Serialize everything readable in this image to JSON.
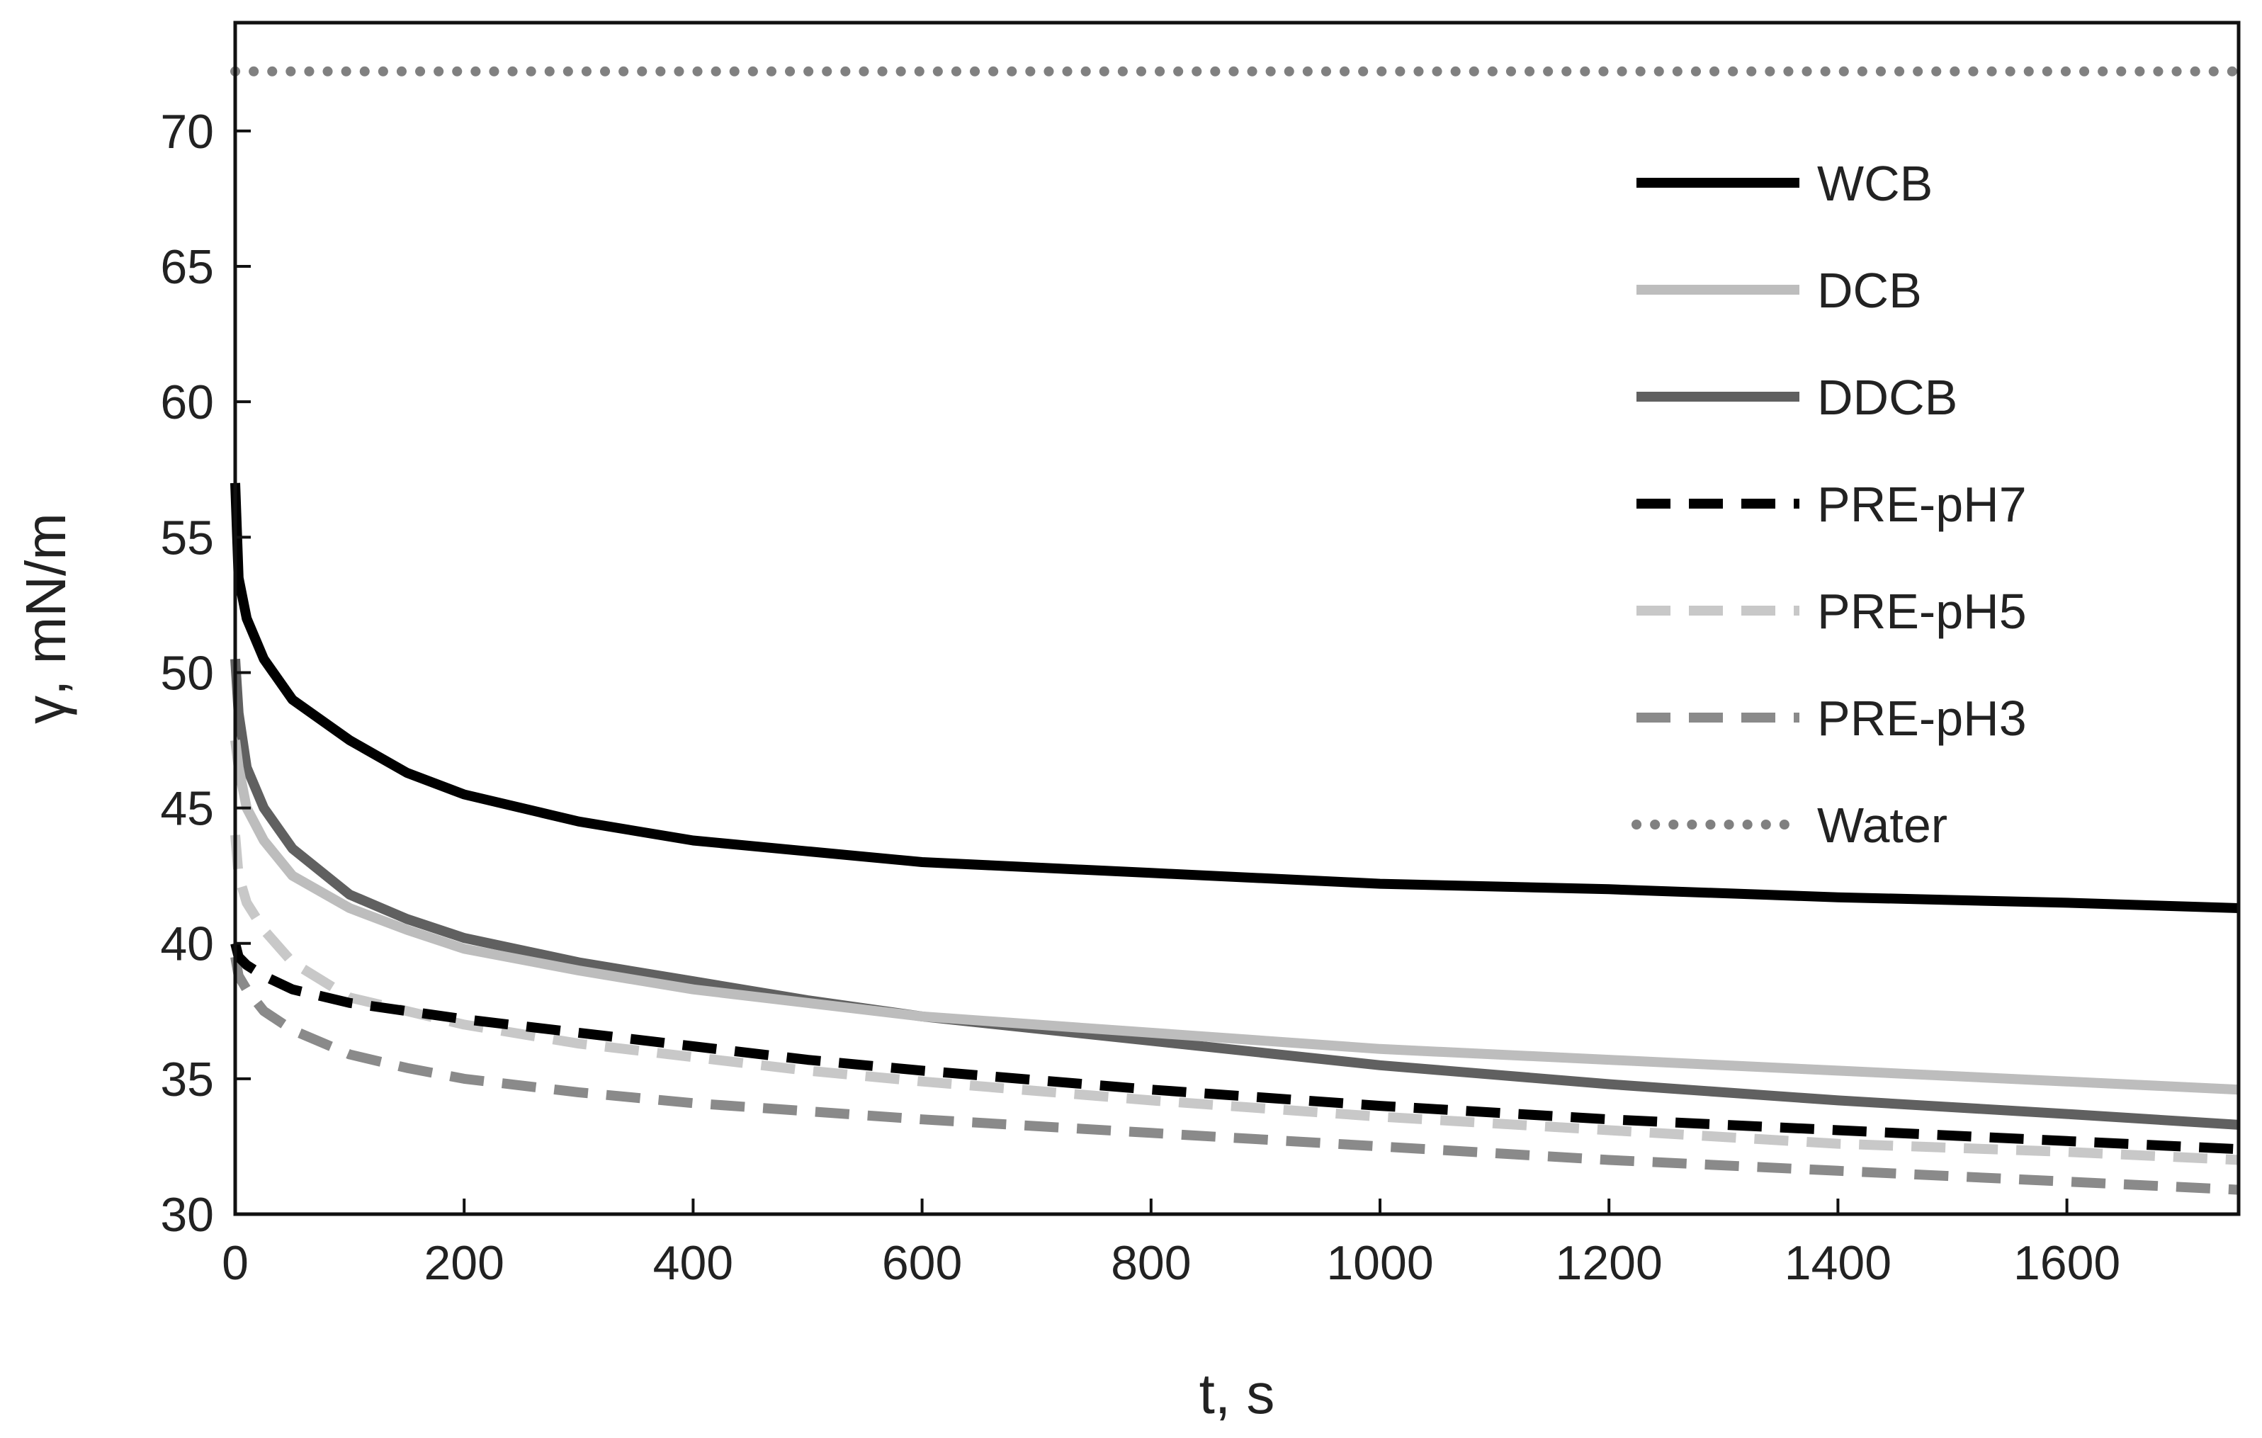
{
  "chart_data": {
    "type": "line",
    "title": "",
    "xlabel": "t, s",
    "ylabel": "γ, mN/m",
    "xlim": [
      0,
      1750
    ],
    "ylim": [
      30,
      74
    ],
    "x_ticks": [
      0,
      200,
      400,
      600,
      800,
      1000,
      1200,
      1400,
      1600
    ],
    "y_ticks": [
      30,
      35,
      40,
      45,
      50,
      55,
      60,
      65,
      70
    ],
    "grid": false,
    "legend_position": "top-right",
    "series": [
      {
        "name": "WCB",
        "color": "#000000",
        "style": "solid",
        "x": [
          0,
          3,
          10,
          25,
          50,
          100,
          150,
          200,
          300,
          400,
          500,
          600,
          800,
          1000,
          1200,
          1400,
          1600,
          1750
        ],
        "y": [
          57.0,
          53.5,
          52.0,
          50.5,
          49.0,
          47.5,
          46.3,
          45.5,
          44.5,
          43.8,
          43.4,
          43.0,
          42.6,
          42.2,
          42.0,
          41.7,
          41.5,
          41.3
        ]
      },
      {
        "name": "DCB",
        "color": "#bdbdbd",
        "style": "solid",
        "x": [
          0,
          3,
          10,
          25,
          50,
          100,
          150,
          200,
          300,
          400,
          500,
          600,
          800,
          1000,
          1200,
          1400,
          1600,
          1750
        ],
        "y": [
          47.5,
          46.5,
          45.0,
          43.8,
          42.5,
          41.3,
          40.5,
          39.8,
          39.0,
          38.3,
          37.8,
          37.3,
          36.7,
          36.1,
          35.7,
          35.3,
          34.9,
          34.6
        ]
      },
      {
        "name": "DDCB",
        "color": "#606060",
        "style": "solid",
        "x": [
          0,
          3,
          10,
          25,
          50,
          100,
          150,
          200,
          300,
          400,
          500,
          600,
          800,
          1000,
          1200,
          1400,
          1600,
          1750
        ],
        "y": [
          50.5,
          48.5,
          46.5,
          45.0,
          43.5,
          41.8,
          40.9,
          40.2,
          39.3,
          38.6,
          37.9,
          37.3,
          36.4,
          35.5,
          34.8,
          34.2,
          33.7,
          33.3
        ]
      },
      {
        "name": "PRE-pH7",
        "color": "#000000",
        "style": "dashed",
        "x": [
          0,
          3,
          10,
          25,
          50,
          100,
          150,
          200,
          300,
          400,
          500,
          600,
          800,
          1000,
          1200,
          1400,
          1600,
          1750
        ],
        "y": [
          40.0,
          39.5,
          39.2,
          38.8,
          38.3,
          37.8,
          37.5,
          37.2,
          36.7,
          36.2,
          35.7,
          35.3,
          34.6,
          34.0,
          33.5,
          33.1,
          32.7,
          32.4
        ]
      },
      {
        "name": "PRE-pH5",
        "color": "#c8c8c8",
        "style": "dashed",
        "x": [
          0,
          3,
          10,
          25,
          50,
          100,
          150,
          200,
          300,
          400,
          500,
          600,
          800,
          1000,
          1200,
          1400,
          1600,
          1750
        ],
        "y": [
          44.0,
          42.5,
          41.5,
          40.5,
          39.3,
          38.0,
          37.5,
          37.0,
          36.3,
          35.8,
          35.3,
          34.9,
          34.2,
          33.6,
          33.1,
          32.6,
          32.3,
          32.0
        ]
      },
      {
        "name": "PRE-pH3",
        "color": "#8a8a8a",
        "style": "dashed",
        "x": [
          0,
          3,
          10,
          25,
          50,
          100,
          150,
          200,
          300,
          400,
          500,
          600,
          800,
          1000,
          1200,
          1400,
          1600,
          1750
        ],
        "y": [
          39.5,
          38.8,
          38.3,
          37.5,
          36.8,
          35.9,
          35.4,
          35.0,
          34.5,
          34.1,
          33.8,
          33.5,
          33.0,
          32.5,
          32.0,
          31.6,
          31.2,
          30.9
        ]
      },
      {
        "name": "Water",
        "color": "#808080",
        "style": "dotted",
        "x": [
          0,
          1750
        ],
        "y": [
          72.2,
          72.2
        ]
      }
    ]
  }
}
